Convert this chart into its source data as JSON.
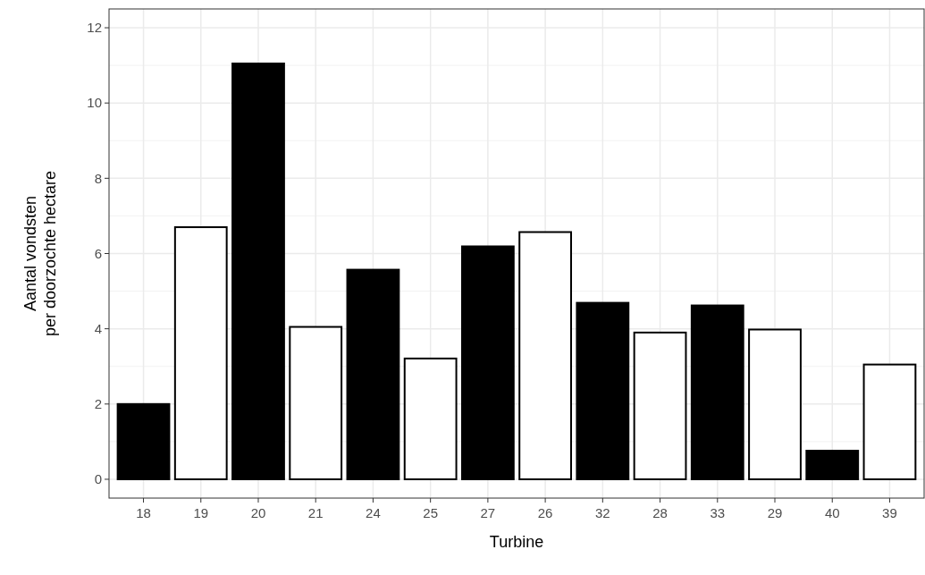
{
  "chart_data": {
    "type": "bar",
    "xlabel": "Turbine",
    "ylabel": "Aantal vondsten\nper doorzochte hectare",
    "categories": [
      "18",
      "19",
      "20",
      "21",
      "24",
      "25",
      "27",
      "26",
      "32",
      "28",
      "33",
      "29",
      "40",
      "39"
    ],
    "values": [
      2.0,
      6.7,
      11.05,
      4.05,
      5.57,
      3.21,
      6.19,
      6.57,
      4.69,
      3.9,
      4.62,
      3.98,
      0.76,
      3.05
    ],
    "colors": [
      "#000000",
      "#ffffff",
      "#000000",
      "#ffffff",
      "#000000",
      "#ffffff",
      "#000000",
      "#ffffff",
      "#000000",
      "#ffffff",
      "#000000",
      "#ffffff",
      "#000000",
      "#ffffff"
    ],
    "ylim": [
      -0.5,
      12.5
    ],
    "yticks": [
      0,
      2,
      4,
      6,
      8,
      10,
      12
    ],
    "grid": true
  }
}
